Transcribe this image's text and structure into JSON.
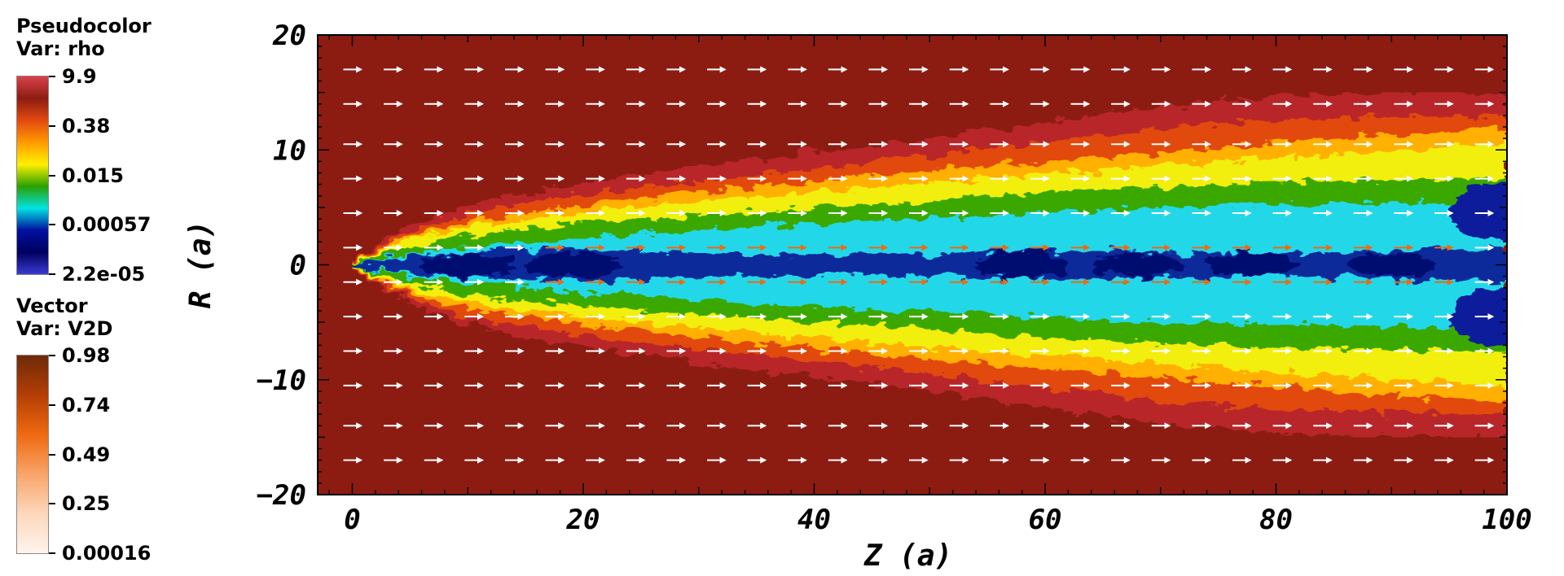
{
  "legend_pseudocolor": {
    "title_line1": "Pseudocolor",
    "title_line2": "Var: rho",
    "labels": [
      "9.9",
      "0.38",
      "0.015",
      "0.00057",
      "2.2e-05"
    ],
    "colors": [
      "#d8424a",
      "#8c1c12",
      "#e24a10",
      "#ff9a00",
      "#fff000",
      "#2aa000",
      "#00e4e4",
      "#0010a0",
      "#000060",
      "#3a3ad0"
    ]
  },
  "legend_vector": {
    "title_line1": "Vector",
    "title_line2": "Var: V2D",
    "labels": [
      "0.98",
      "0.74",
      "0.49",
      "0.25",
      "0.00016"
    ],
    "colors": [
      "#6e2a08",
      "#b43e06",
      "#ee6a10",
      "#f8a468",
      "#fcd8bc",
      "#fff4ec"
    ]
  },
  "chart_data": {
    "type": "heatmap",
    "xlabel": "Z (a)",
    "ylabel": "R (a)",
    "xlim": [
      -3,
      100
    ],
    "ylim": [
      -20,
      20
    ],
    "xticks": [
      0,
      20,
      40,
      60,
      80,
      100
    ],
    "yticks": [
      -20,
      -10,
      0,
      10,
      20
    ],
    "xtick_labels": [
      "0",
      "20",
      "40",
      "60",
      "80",
      "100"
    ],
    "ytick_labels": [
      "−20",
      "−10",
      "0",
      "10",
      "20"
    ],
    "jet_boundary": {
      "z": [
        0,
        5,
        10,
        20,
        30,
        40,
        50,
        60,
        70,
        80,
        90,
        100
      ],
      "r_outer": [
        0.4,
        3.5,
        5.2,
        7.2,
        8.5,
        9.8,
        11.0,
        12.4,
        13.8,
        14.6,
        15.0,
        15.0
      ],
      "r_yellow": [
        0.3,
        2.5,
        3.8,
        5.2,
        6.3,
        7.2,
        8.2,
        9.0,
        9.8,
        10.6,
        11.3,
        12.0
      ],
      "r_green": [
        0.2,
        1.6,
        2.6,
        3.6,
        4.3,
        5.0,
        5.6,
        6.4,
        6.8,
        7.2,
        7.4,
        7.6
      ],
      "r_cyan": [
        0.1,
        1.0,
        1.6,
        2.4,
        3.0,
        3.6,
        4.0,
        4.6,
        5.0,
        5.2,
        5.4,
        5.6
      ],
      "r_core": [
        0.1,
        0.8,
        1.1,
        1.4,
        1.0,
        0.8,
        1.0,
        1.3,
        1.1,
        1.0,
        1.2,
        1.5
      ]
    },
    "vector_field": {
      "z_positions": [
        0,
        3.5,
        7,
        10.5,
        14,
        17.5,
        21,
        24.5,
        28,
        31.5,
        35,
        38.5,
        42,
        45.5,
        49,
        52.5,
        56,
        59.5,
        63,
        66.5,
        70,
        73.5,
        77,
        80.5,
        84,
        87.5,
        91,
        94.5,
        98
      ],
      "r_positions": [
        17,
        14,
        10.5,
        7.5,
        4.5,
        1.5,
        -1.5,
        -4.5,
        -7.5,
        -10.5,
        -14,
        -17
      ],
      "ambient_speed": 0.25,
      "jet_speed": 0.98
    }
  }
}
